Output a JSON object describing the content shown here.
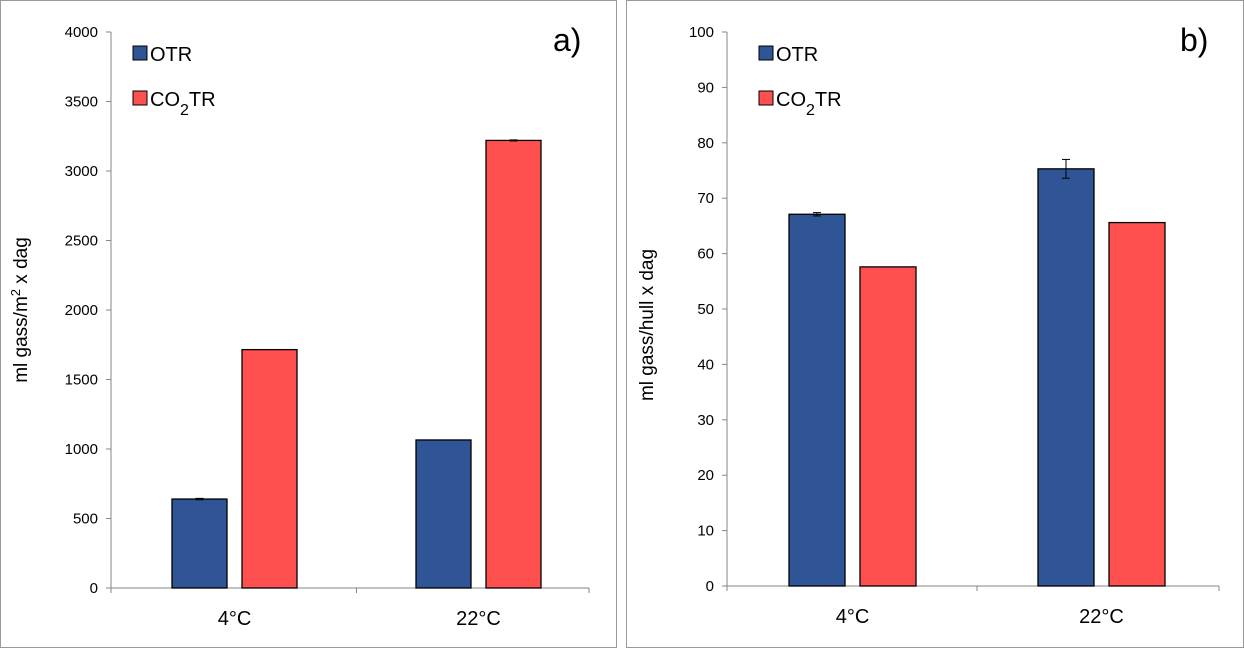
{
  "colors": {
    "otr": "#2f5597",
    "co2tr": "#ff5050",
    "axis": "#868686",
    "edge": "#000000"
  },
  "chart_data": [
    {
      "type": "bar",
      "panel_label": "a)",
      "categories": [
        "4°C",
        "22°C"
      ],
      "ylabel": "ml gass/m² x dag",
      "ylabel_parts": {
        "pre": "ml gass/m",
        "sup": "2",
        "post": " x dag"
      },
      "ylim": [
        0,
        4000
      ],
      "yticks": [
        0,
        500,
        1000,
        1500,
        2000,
        2500,
        3000,
        3500,
        4000
      ],
      "legend_position": "top-left",
      "grid": false,
      "series": [
        {
          "name": "OTR",
          "name_parts": {
            "pre": "OTR",
            "sub": "",
            "post": ""
          },
          "values": [
            640,
            1065
          ],
          "errors": [
            5,
            0
          ]
        },
        {
          "name": "CO2TR",
          "name_parts": {
            "pre": "CO",
            "sub": "2",
            "post": "TR"
          },
          "values": [
            1715,
            3220
          ],
          "errors": [
            0,
            4
          ]
        }
      ]
    },
    {
      "type": "bar",
      "panel_label": "b)",
      "categories": [
        "4°C",
        "22°C"
      ],
      "ylabel": "ml gass/hull x dag",
      "ylabel_parts": {
        "pre": "ml gass/hull x dag",
        "sup": "",
        "post": ""
      },
      "ylim": [
        0,
        100
      ],
      "yticks": [
        0,
        10,
        20,
        30,
        40,
        50,
        60,
        70,
        80,
        90,
        100
      ],
      "legend_position": "top-left",
      "grid": false,
      "series": [
        {
          "name": "OTR",
          "name_parts": {
            "pre": "OTR",
            "sub": "",
            "post": ""
          },
          "values": [
            67.1,
            75.3
          ],
          "errors": [
            0.3,
            1.7
          ]
        },
        {
          "name": "CO2TR",
          "name_parts": {
            "pre": "CO",
            "sub": "2",
            "post": "TR"
          },
          "values": [
            57.6,
            65.6
          ],
          "errors": [
            0,
            0
          ]
        }
      ]
    }
  ]
}
